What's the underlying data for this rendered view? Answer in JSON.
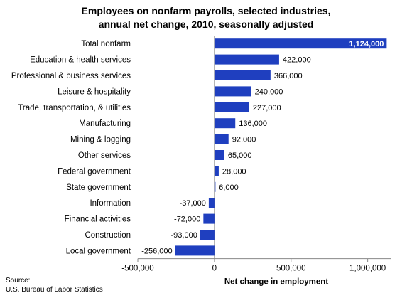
{
  "chart_data": {
    "type": "bar",
    "orientation": "horizontal",
    "title_lines": [
      "Employees on nonfarm payrolls, selected industries,",
      "annual net change, 2010, seasonally adjusted"
    ],
    "xlabel": "Net change in employment",
    "ylabel": "",
    "xlim": [
      -500000,
      1150000
    ],
    "x_ticks": [
      -500000,
      0,
      500000,
      1000000
    ],
    "x_tick_labels": [
      "-500,000",
      "0",
      "500,000",
      "1,000,000"
    ],
    "categories": [
      "Total nonfarm",
      "Education & health services",
      "Professional & business services",
      "Leisure & hospitality",
      "Trade, transportation,  & utilities",
      "Manufacturing",
      "Mining & logging",
      "Other services",
      "Federal government",
      "State government",
      "Information",
      "Financial activities",
      "Construction",
      "Local government"
    ],
    "values": [
      1124000,
      422000,
      366000,
      240000,
      227000,
      136000,
      92000,
      65000,
      28000,
      6000,
      -37000,
      -72000,
      -93000,
      -256000
    ],
    "value_labels": [
      "1,124,000",
      "422,000",
      "366,000",
      "240,000",
      "227,000",
      "136,000",
      "92,000",
      "65,000",
      "28,000",
      "6,000",
      "-37,000",
      "-72,000",
      "-93,000",
      "-256,000"
    ],
    "bar_color": "#1f3fbf",
    "grid": false,
    "legend": "none"
  },
  "source_lines": [
    "Source:",
    "U.S. Bureau of Labor Statistics"
  ]
}
